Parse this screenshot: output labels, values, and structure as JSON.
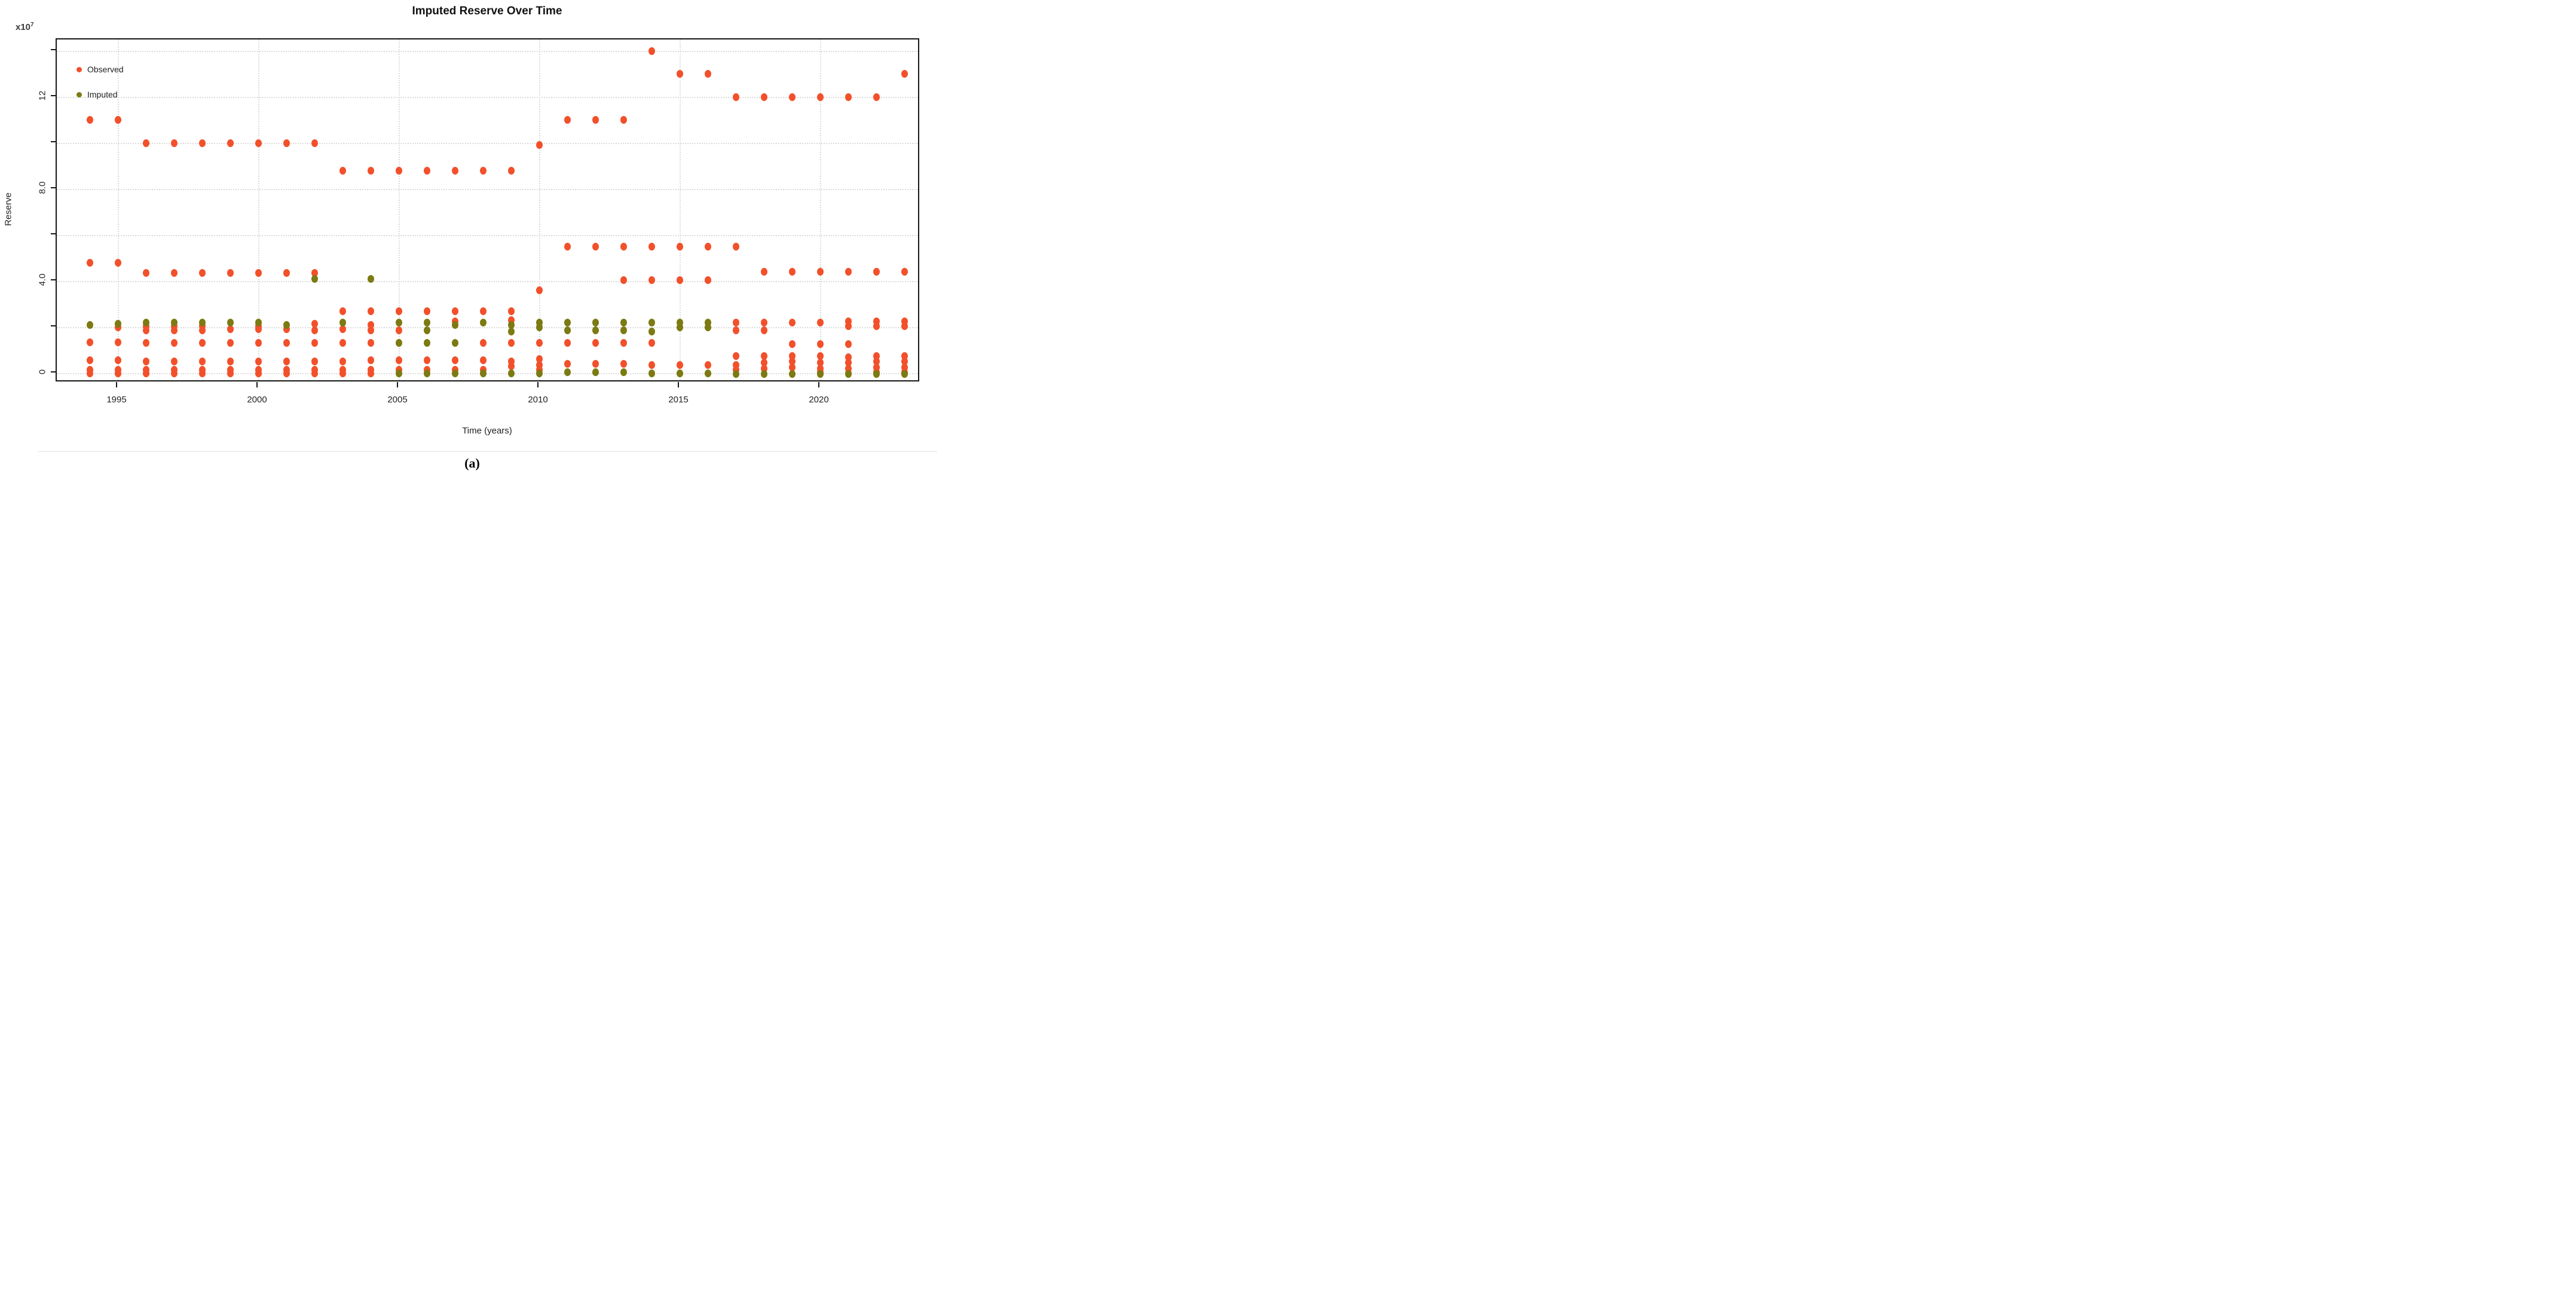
{
  "title": "Imputed Reserve Over Time",
  "caption": "(a)",
  "y_axis": {
    "label": "Reserve",
    "multiplier_base": "x10",
    "multiplier_exponent": "7",
    "tick_labels": [
      {
        "value": 0,
        "label": "0"
      },
      {
        "value": 4,
        "label": "4.0"
      },
      {
        "value": 8,
        "label": "8.0"
      },
      {
        "value": 12,
        "label": "12"
      }
    ],
    "grid_values": [
      0,
      2,
      4,
      6,
      8,
      10,
      12,
      14
    ],
    "range": [
      -0.45,
      14.9
    ]
  },
  "x_axis": {
    "label": "Time (years)",
    "tick_years": [
      1995,
      2000,
      2005,
      2010,
      2015,
      2020
    ],
    "range": [
      1993.2,
      2023.6
    ]
  },
  "legend": {
    "items": [
      {
        "label": "Observed",
        "color": "#F2502B"
      },
      {
        "label": "Imputed",
        "color": "#7C7A12"
      }
    ]
  },
  "colors": {
    "observed": "#F2502B",
    "imputed": "#7C7A12",
    "gridline": "#DCDCDC",
    "axis": "#161616"
  },
  "chart_data": {
    "type": "scatter",
    "title": "Imputed Reserve Over Time",
    "xlabel": "Time (years)",
    "ylabel": "Reserve",
    "y_unit": "1e7",
    "ylim": [
      -0.45,
      14.9
    ],
    "xlim": [
      1993.2,
      2023.6
    ],
    "grid": "dotted, every 2 units on y; at 5-year ticks on x",
    "legend_position": "upper-left-inside",
    "series": [
      {
        "name": "Observed",
        "color": "#F2502B",
        "points": [
          [
            1994,
            11.0
          ],
          [
            1994,
            4.8
          ],
          [
            1994,
            1.35
          ],
          [
            1994,
            0.55
          ],
          [
            1994,
            0.15
          ],
          [
            1994,
            0.0
          ],
          [
            1995,
            11.0
          ],
          [
            1995,
            4.8
          ],
          [
            1995,
            2.0
          ],
          [
            1995,
            1.35
          ],
          [
            1995,
            0.55
          ],
          [
            1995,
            0.15
          ],
          [
            1995,
            0.0
          ],
          [
            1996,
            10.0
          ],
          [
            1996,
            4.35
          ],
          [
            1996,
            2.05
          ],
          [
            1996,
            1.85
          ],
          [
            1996,
            1.3
          ],
          [
            1996,
            0.5
          ],
          [
            1996,
            0.15
          ],
          [
            1996,
            0.0
          ],
          [
            1997,
            10.0
          ],
          [
            1997,
            4.35
          ],
          [
            1997,
            2.05
          ],
          [
            1997,
            1.85
          ],
          [
            1997,
            1.3
          ],
          [
            1997,
            0.5
          ],
          [
            1997,
            0.15
          ],
          [
            1997,
            0.0
          ],
          [
            1998,
            10.0
          ],
          [
            1998,
            4.35
          ],
          [
            1998,
            2.05
          ],
          [
            1998,
            1.85
          ],
          [
            1998,
            1.3
          ],
          [
            1998,
            0.5
          ],
          [
            1998,
            0.15
          ],
          [
            1998,
            0.0
          ],
          [
            1999,
            10.0
          ],
          [
            1999,
            4.35
          ],
          [
            1999,
            1.9
          ],
          [
            1999,
            1.3
          ],
          [
            1999,
            0.5
          ],
          [
            1999,
            0.15
          ],
          [
            1999,
            0.0
          ],
          [
            2000,
            10.0
          ],
          [
            2000,
            4.35
          ],
          [
            2000,
            2.05
          ],
          [
            2000,
            1.9
          ],
          [
            2000,
            1.3
          ],
          [
            2000,
            0.5
          ],
          [
            2000,
            0.15
          ],
          [
            2000,
            0.0
          ],
          [
            2001,
            10.0
          ],
          [
            2001,
            4.35
          ],
          [
            2001,
            1.9
          ],
          [
            2001,
            1.3
          ],
          [
            2001,
            0.5
          ],
          [
            2001,
            0.15
          ],
          [
            2001,
            0.0
          ],
          [
            2002,
            10.0
          ],
          [
            2002,
            4.35
          ],
          [
            2002,
            2.15
          ],
          [
            2002,
            1.85
          ],
          [
            2002,
            1.3
          ],
          [
            2002,
            0.5
          ],
          [
            2002,
            0.15
          ],
          [
            2002,
            0.0
          ],
          [
            2003,
            8.8
          ],
          [
            2003,
            2.7
          ],
          [
            2003,
            1.9
          ],
          [
            2003,
            1.3
          ],
          [
            2003,
            0.5
          ],
          [
            2003,
            0.15
          ],
          [
            2003,
            0.0
          ],
          [
            2004,
            8.8
          ],
          [
            2004,
            2.7
          ],
          [
            2004,
            2.1
          ],
          [
            2004,
            1.85
          ],
          [
            2004,
            1.3
          ],
          [
            2004,
            0.55
          ],
          [
            2004,
            0.15
          ],
          [
            2004,
            0.0
          ],
          [
            2005,
            8.8
          ],
          [
            2005,
            2.7
          ],
          [
            2005,
            1.85
          ],
          [
            2005,
            0.55
          ],
          [
            2005,
            0.15
          ],
          [
            2006,
            8.8
          ],
          [
            2006,
            2.7
          ],
          [
            2006,
            0.55
          ],
          [
            2006,
            0.15
          ],
          [
            2007,
            8.8
          ],
          [
            2007,
            2.7
          ],
          [
            2007,
            2.25
          ],
          [
            2007,
            0.55
          ],
          [
            2007,
            0.15
          ],
          [
            2008,
            8.8
          ],
          [
            2008,
            2.7
          ],
          [
            2008,
            1.3
          ],
          [
            2008,
            0.55
          ],
          [
            2008,
            0.15
          ],
          [
            2009,
            8.8
          ],
          [
            2009,
            2.7
          ],
          [
            2009,
            2.3
          ],
          [
            2009,
            1.3
          ],
          [
            2009,
            0.5
          ],
          [
            2009,
            0.3
          ],
          [
            2010,
            9.9
          ],
          [
            2010,
            3.6
          ],
          [
            2010,
            1.3
          ],
          [
            2010,
            0.6
          ],
          [
            2010,
            0.35
          ],
          [
            2010,
            0.15
          ],
          [
            2011,
            11.0
          ],
          [
            2011,
            5.5
          ],
          [
            2011,
            1.3
          ],
          [
            2011,
            0.4
          ],
          [
            2012,
            11.0
          ],
          [
            2012,
            5.5
          ],
          [
            2012,
            1.3
          ],
          [
            2012,
            0.4
          ],
          [
            2013,
            11.0
          ],
          [
            2013,
            5.5
          ],
          [
            2013,
            4.05
          ],
          [
            2013,
            1.3
          ],
          [
            2013,
            0.4
          ],
          [
            2014,
            14.0
          ],
          [
            2014,
            5.5
          ],
          [
            2014,
            4.05
          ],
          [
            2014,
            1.3
          ],
          [
            2014,
            0.35
          ],
          [
            2015,
            13.0
          ],
          [
            2015,
            5.5
          ],
          [
            2015,
            4.05
          ],
          [
            2015,
            0.35
          ],
          [
            2016,
            13.0
          ],
          [
            2016,
            5.5
          ],
          [
            2016,
            4.05
          ],
          [
            2016,
            0.35
          ],
          [
            2017,
            12.0
          ],
          [
            2017,
            5.5
          ],
          [
            2017,
            2.2
          ],
          [
            2017,
            1.85
          ],
          [
            2017,
            0.75
          ],
          [
            2017,
            0.35
          ],
          [
            2017,
            0.15
          ],
          [
            2018,
            12.0
          ],
          [
            2018,
            4.4
          ],
          [
            2018,
            2.2
          ],
          [
            2018,
            1.85
          ],
          [
            2018,
            0.75
          ],
          [
            2018,
            0.45
          ],
          [
            2018,
            0.2
          ],
          [
            2019,
            12.0
          ],
          [
            2019,
            4.4
          ],
          [
            2019,
            2.2
          ],
          [
            2019,
            1.25
          ],
          [
            2019,
            0.75
          ],
          [
            2019,
            0.5
          ],
          [
            2019,
            0.25
          ],
          [
            2020,
            12.0
          ],
          [
            2020,
            4.4
          ],
          [
            2020,
            2.2
          ],
          [
            2020,
            1.25
          ],
          [
            2020,
            0.75
          ],
          [
            2020,
            0.45
          ],
          [
            2020,
            0.2
          ],
          [
            2020,
            0.05
          ],
          [
            2021,
            12.0
          ],
          [
            2021,
            4.4
          ],
          [
            2021,
            2.25
          ],
          [
            2021,
            2.05
          ],
          [
            2021,
            1.25
          ],
          [
            2021,
            0.7
          ],
          [
            2021,
            0.45
          ],
          [
            2021,
            0.2
          ],
          [
            2021,
            0.0
          ],
          [
            2022,
            12.0
          ],
          [
            2022,
            4.4
          ],
          [
            2022,
            2.25
          ],
          [
            2022,
            2.05
          ],
          [
            2022,
            0.75
          ],
          [
            2022,
            0.5
          ],
          [
            2022,
            0.25
          ],
          [
            2022,
            0.05
          ],
          [
            2023,
            13.0
          ],
          [
            2023,
            4.4
          ],
          [
            2023,
            2.25
          ],
          [
            2023,
            2.05
          ],
          [
            2023,
            0.75
          ],
          [
            2023,
            0.5
          ],
          [
            2023,
            0.25
          ],
          [
            2023,
            0.05
          ]
        ]
      },
      {
        "name": "Imputed",
        "color": "#7C7A12",
        "points": [
          [
            1994,
            2.1
          ],
          [
            1995,
            2.15
          ],
          [
            1996,
            2.2
          ],
          [
            1997,
            2.2
          ],
          [
            1998,
            2.2
          ],
          [
            1999,
            2.2
          ],
          [
            2000,
            2.2
          ],
          [
            2001,
            2.1
          ],
          [
            2002,
            4.1
          ],
          [
            2003,
            2.2
          ],
          [
            2004,
            4.1
          ],
          [
            2005,
            2.2
          ],
          [
            2005,
            1.3
          ],
          [
            2005,
            0.0
          ],
          [
            2006,
            2.2
          ],
          [
            2006,
            1.85
          ],
          [
            2006,
            1.3
          ],
          [
            2006,
            0.0
          ],
          [
            2007,
            2.1
          ],
          [
            2007,
            1.3
          ],
          [
            2007,
            0.0
          ],
          [
            2008,
            2.2
          ],
          [
            2008,
            0.0
          ],
          [
            2009,
            2.1
          ],
          [
            2009,
            1.8
          ],
          [
            2009,
            0.0
          ],
          [
            2010,
            2.2
          ],
          [
            2010,
            2.0
          ],
          [
            2010,
            0.0
          ],
          [
            2011,
            2.2
          ],
          [
            2011,
            1.85
          ],
          [
            2011,
            0.05
          ],
          [
            2012,
            2.2
          ],
          [
            2012,
            1.85
          ],
          [
            2012,
            0.05
          ],
          [
            2013,
            2.2
          ],
          [
            2013,
            1.85
          ],
          [
            2013,
            0.05
          ],
          [
            2014,
            2.2
          ],
          [
            2014,
            1.8
          ],
          [
            2014,
            0.0
          ],
          [
            2015,
            2.2
          ],
          [
            2015,
            2.0
          ],
          [
            2015,
            0.0
          ],
          [
            2016,
            2.2
          ],
          [
            2016,
            2.0
          ],
          [
            2016,
            0.0
          ],
          [
            2017,
            -0.05
          ],
          [
            2018,
            -0.05
          ],
          [
            2019,
            -0.05
          ],
          [
            2020,
            -0.05
          ],
          [
            2021,
            -0.05
          ],
          [
            2022,
            -0.05
          ],
          [
            2023,
            -0.05
          ]
        ]
      }
    ]
  }
}
